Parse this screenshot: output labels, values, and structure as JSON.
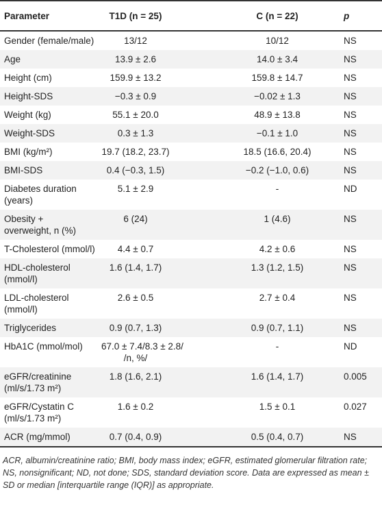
{
  "table": {
    "header": [
      "Parameter",
      "T1D (n = 25)",
      "C (n = 22)",
      "p"
    ],
    "rows": [
      [
        "Gender (female/male)",
        "13/12",
        "10/12",
        "NS"
      ],
      [
        "Age",
        "13.9 ± 2.6",
        "14.0 ± 3.4",
        "NS"
      ],
      [
        "Height (cm)",
        "159.9 ± 13.2",
        "159.8 ± 14.7",
        "NS"
      ],
      [
        "Height-SDS",
        "−0.3 ± 0.9",
        "−0.02 ± 1.3",
        "NS"
      ],
      [
        "Weight (kg)",
        "55.1 ± 20.0",
        "48.9 ± 13.8",
        "NS"
      ],
      [
        "Weight-SDS",
        "0.3 ± 1.3",
        "−0.1 ± 1.0",
        "NS"
      ],
      [
        "BMI (kg/m²)",
        "19.7 (18.2, 23.7)",
        "18.5 (16.6, 20.4)",
        "NS"
      ],
      [
        "BMI-SDS",
        "0.4 (−0.3, 1.5)",
        "−0.2 (−1.0, 0.6)",
        "NS"
      ],
      [
        "Diabetes duration\n(years)",
        "5.1 ± 2.9",
        "-",
        "ND"
      ],
      [
        "Obesity +\noverweight, n (%)",
        "6 (24)",
        "1 (4.6)",
        "NS"
      ],
      [
        "T-Cholesterol (mmol/l)",
        "4.4 ± 0.7",
        "4.2 ± 0.6",
        "NS"
      ],
      [
        "HDL-cholesterol\n(mmol/l)",
        "1.6 (1.4, 1.7)",
        "1.3 (1.2, 1.5)",
        "NS"
      ],
      [
        "LDL-cholesterol\n(mmol/l)",
        "2.6 ± 0.5",
        "2.7 ± 0.4",
        "NS"
      ],
      [
        "Triglycerides",
        "0.9 (0.7, 1.3)",
        "0.9 (0.7, 1.1)",
        "NS"
      ],
      [
        "HbA1C (mmol/mol)",
        "67.0 ± 7.4/8.3 ± 2.8/\n/n, %/",
        "-",
        "ND"
      ],
      [
        "eGFR/creatinine\n(ml/s/1.73 m²)",
        "1.8 (1.6, 2.1)",
        "1.6 (1.4, 1.7)",
        "0.005"
      ],
      [
        "eGFR/Cystatin C\n(ml/s/1.73 m²)",
        "1.6 ± 0.2",
        "1.5 ± 0.1",
        "0.027"
      ],
      [
        "ACR (mg/mmol)",
        "0.7 (0.4, 0.9)",
        "0.5 (0.4, 0.7)",
        "NS"
      ]
    ],
    "footnote": "ACR, albumin/creatinine ratio; BMI, body mass index; eGFR, estimated glomerular filtration rate; NS, nonsignificant; ND, not done; SDS, standard deviation score. Data are expressed as mean ± SD or median [interquartile range (IQR)] as appropriate."
  }
}
